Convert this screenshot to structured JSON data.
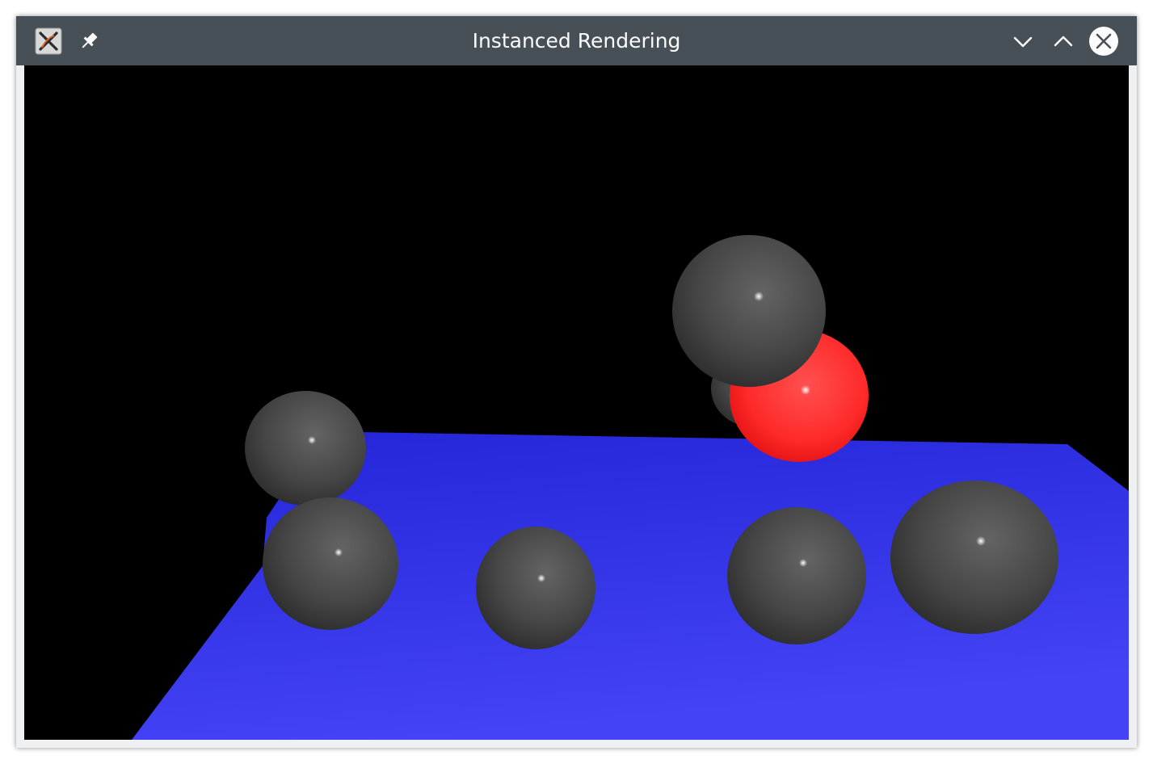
{
  "window": {
    "title": "Instanced Rendering"
  },
  "titlebar": {
    "app_icon": "x-app-icon",
    "pin_icon": "pin-icon",
    "minimize_icon": "chevron-down-icon",
    "maximize_icon": "chevron-up-icon",
    "close_icon": "close-icon"
  },
  "scene": {
    "background_color": "#000000",
    "plane_color": "#3a3ae0",
    "sphere_color": "#4a4a4a",
    "highlight_sphere_color": "#ff2a2a",
    "sphere_count": 8
  }
}
